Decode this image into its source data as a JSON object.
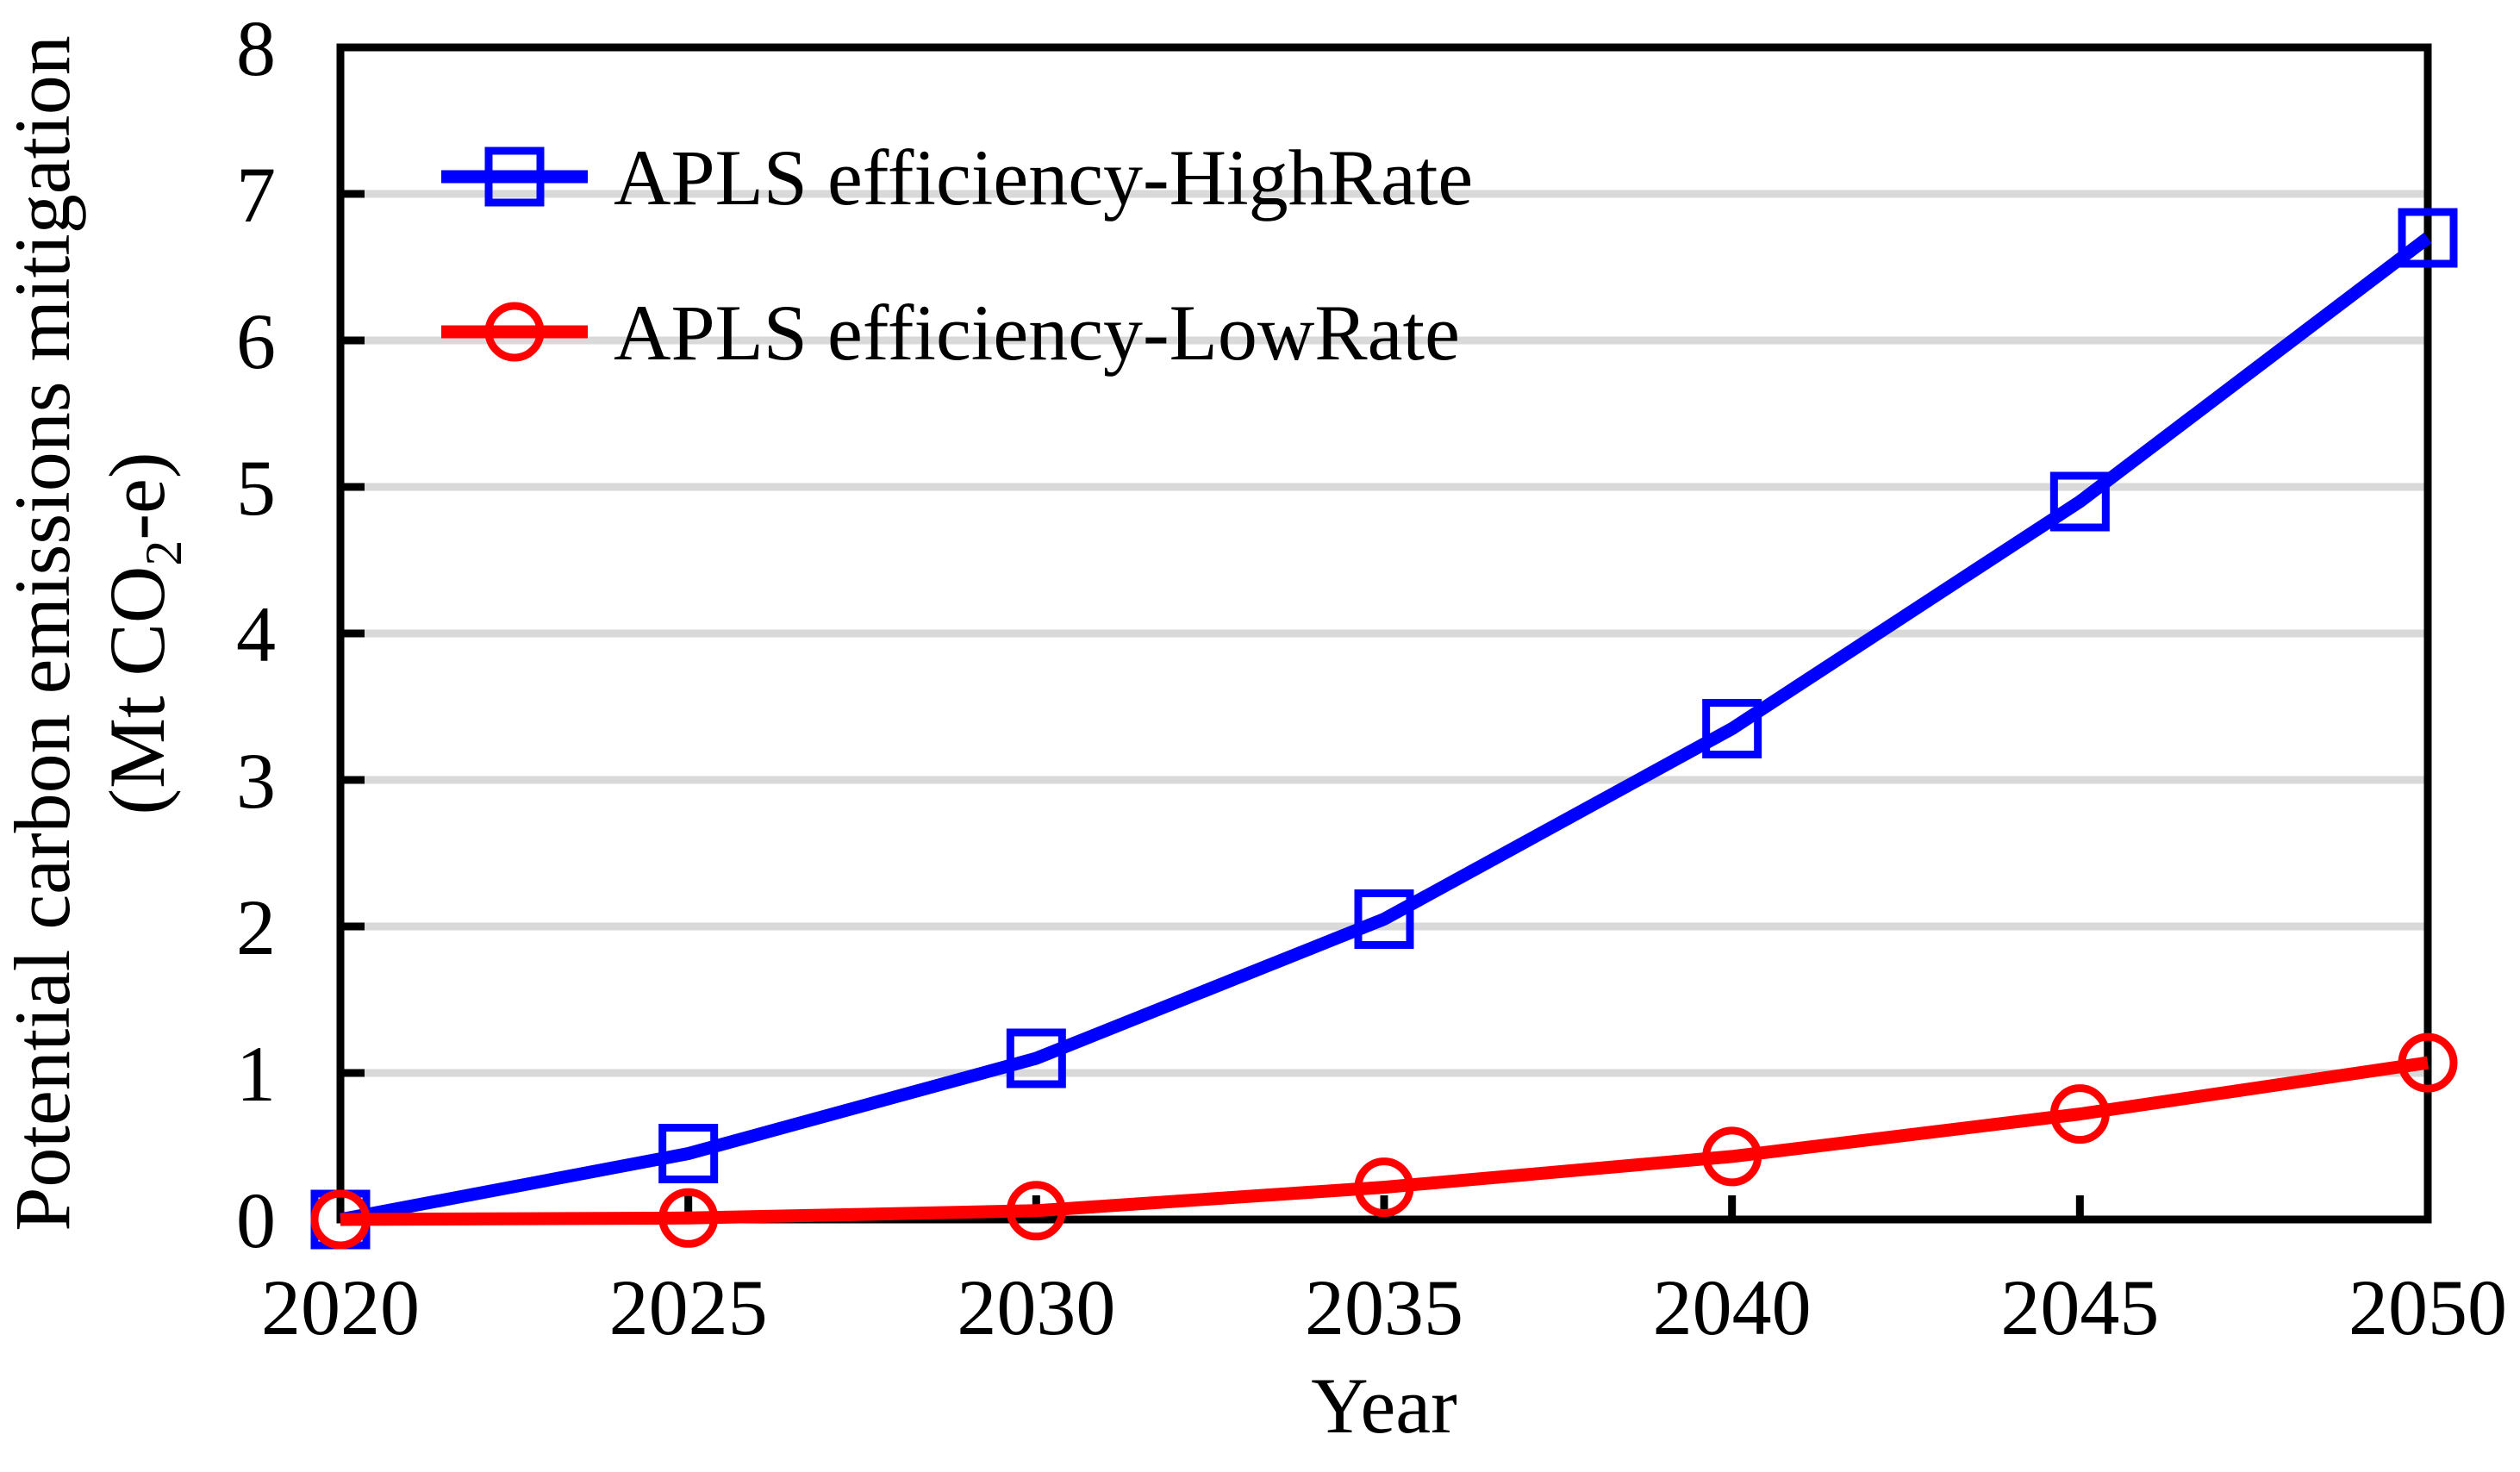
{
  "chart_data": {
    "type": "line",
    "title": "",
    "xlabel": "Year",
    "ylabel_line1": "Potential carbon emissions mitigation",
    "ylabel_line2_prefix": "(Mt CO",
    "ylabel_line2_sub": "2",
    "ylabel_line2_suffix": "-e)",
    "x": [
      2020,
      2025,
      2030,
      2035,
      2040,
      2045,
      2050
    ],
    "x_ticks": [
      "2020",
      "2025",
      "2030",
      "2035",
      "2040",
      "2045",
      "2050"
    ],
    "y_ticks": [
      "0",
      "1",
      "2",
      "3",
      "4",
      "5",
      "6",
      "7",
      "8"
    ],
    "y_gridlines": [
      1,
      2,
      3,
      4,
      5,
      6,
      7
    ],
    "xlim": [
      2020,
      2050
    ],
    "ylim": [
      0,
      8
    ],
    "grid": "horizontal",
    "legend_position": "top-left-inside",
    "colors": {
      "axis": "#000000",
      "gridline": "#D9D9D9",
      "background": "#FFFFFF",
      "highrate_blue": "#0000FF",
      "lowrate_red": "#FF0000"
    },
    "series": [
      {
        "name": "APLS efficiency-HighRate",
        "color": "#0000FF",
        "marker": "square",
        "values": [
          0,
          0.45,
          1.1,
          2.05,
          3.35,
          4.9,
          6.7
        ]
      },
      {
        "name": "APLS efficiency-LowRate",
        "color": "#FF0000",
        "marker": "circle",
        "values": [
          0,
          0.01,
          0.06,
          0.22,
          0.43,
          0.72,
          1.07
        ]
      }
    ]
  }
}
